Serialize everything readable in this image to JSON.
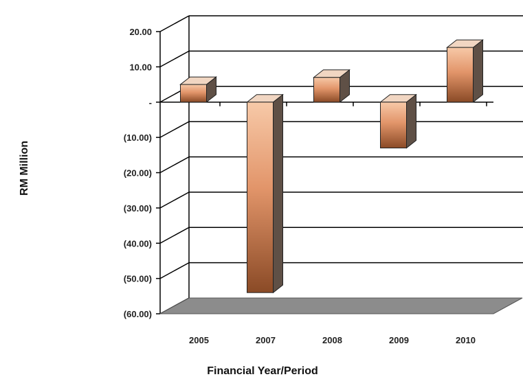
{
  "chart_data": {
    "type": "bar",
    "categories": [
      "2005",
      "2007",
      "2008",
      "2009",
      "2010"
    ],
    "values": [
      5.0,
      -54.0,
      7.0,
      -13.0,
      15.5
    ],
    "xlabel": "Financial Year/Period",
    "ylabel": "RM Million",
    "ylim": [
      -60,
      20
    ],
    "yticks": [
      20,
      10,
      0,
      -10,
      -20,
      -30,
      -40,
      -50,
      -60
    ],
    "ytick_labels": [
      "20.00",
      "10.00",
      "-",
      "(10.00)",
      "(20.00)",
      "(30.00)",
      "(40.00)",
      "(50.00)",
      "(60.00)"
    ],
    "grid": true,
    "style": "3d",
    "colors": {
      "bar_light": "#f7c9a8",
      "bar_mid": "#e2956a",
      "bar_dark": "#8a4a26",
      "bar_top": "#f1d6c2",
      "bar_side": "#5f5046",
      "floor": "#8c8c8c",
      "grid": "#000000"
    }
  }
}
